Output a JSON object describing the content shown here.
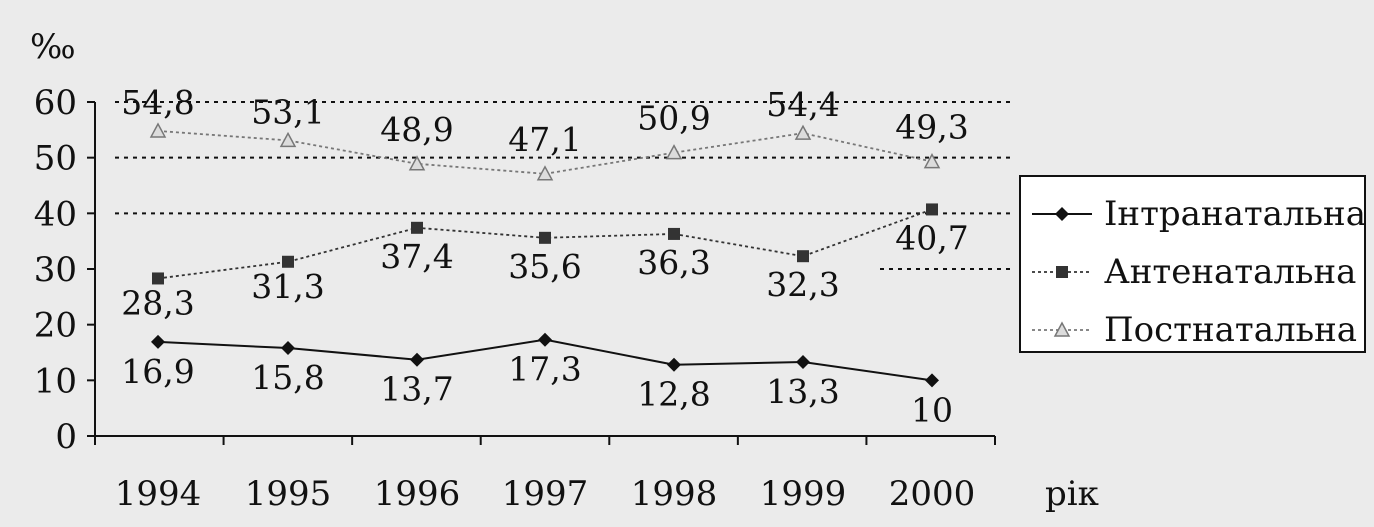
{
  "chart_data": {
    "type": "line",
    "title": "",
    "xlabel": "рік",
    "ylabel": "‰",
    "ylim": [
      0,
      60
    ],
    "yticks": [
      0,
      10,
      20,
      30,
      40,
      50,
      60
    ],
    "categories": [
      "1994",
      "1995",
      "1996",
      "1997",
      "1998",
      "1999",
      "2000"
    ],
    "data_labels_shown": true,
    "legend_position": "right",
    "grid": "dotted horizontal lines at 40, 50, 60",
    "series": [
      {
        "name": "Інтранатальна",
        "marker": "diamond",
        "line_style": "solid",
        "color": "#111111",
        "values": [
          16.9,
          15.8,
          13.7,
          17.3,
          12.8,
          13.3,
          10
        ],
        "labels": [
          "16,9",
          "15,8",
          "13,7",
          "17,3",
          "12,8",
          "13,3",
          "10"
        ]
      },
      {
        "name": "Антенатальна",
        "marker": "square",
        "line_style": "dotted",
        "color": "#333333",
        "values": [
          28.3,
          31.3,
          37.4,
          35.6,
          36.3,
          32.3,
          40.7
        ],
        "labels": [
          "28,3",
          "31,3",
          "37,4",
          "35,6",
          "36,3",
          "32,3",
          "40,7"
        ]
      },
      {
        "name": "Постнатальна",
        "marker": "triangle",
        "line_style": "dotted",
        "color": "#777777",
        "values": [
          54.8,
          53.1,
          48.9,
          47.1,
          50.9,
          54.4,
          49.3
        ],
        "labels": [
          "54,8",
          "53,1",
          "48,9",
          "47,1",
          "50,9",
          "54,4",
          "49,3"
        ]
      }
    ]
  }
}
